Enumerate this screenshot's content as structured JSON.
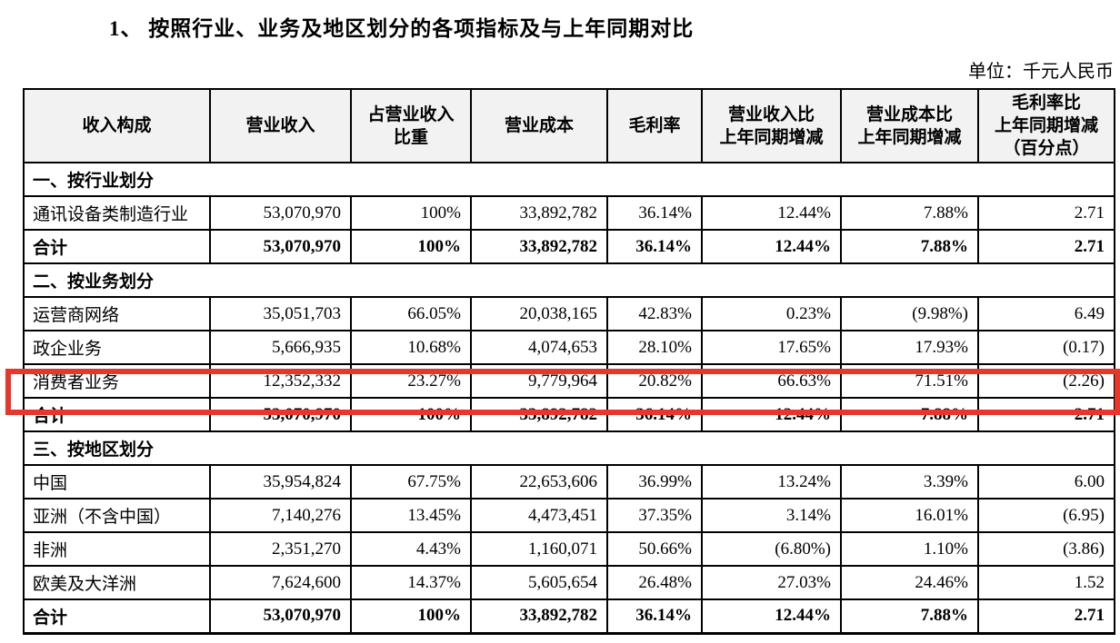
{
  "title": "1、 按照行业、业务及地区划分的各项指标及与上年同期对比",
  "unit_label": "单位：千元人民币",
  "table": {
    "columns": [
      "收入构成",
      "营业收入",
      "占营业收入\n比重",
      "营业成本",
      "毛利率",
      "营业收入比\n上年同期增减",
      "营业成本比\n上年同期增减",
      "毛利率比\n上年同期增减\n（百分点）"
    ],
    "rows": [
      {
        "type": "section",
        "label": "一、按行业划分"
      },
      {
        "type": "data",
        "cells": [
          "通讯设备类制造行业",
          "53,070,970",
          "100%",
          "33,892,782",
          "36.14%",
          "12.44%",
          "7.88%",
          "2.71"
        ]
      },
      {
        "type": "total",
        "cells": [
          "合计",
          "53,070,970",
          "100%",
          "33,892,782",
          "36.14%",
          "12.44%",
          "7.88%",
          "2.71"
        ]
      },
      {
        "type": "section",
        "label": "二、按业务划分"
      },
      {
        "type": "data",
        "cells": [
          "运营商网络",
          "35,051,703",
          "66.05%",
          "20,038,165",
          "42.83%",
          "0.23%",
          "(9.98%)",
          "6.49"
        ]
      },
      {
        "type": "data",
        "cells": [
          "政企业务",
          "5,666,935",
          "10.68%",
          "4,074,653",
          "28.10%",
          "17.65%",
          "17.93%",
          "(0.17)"
        ]
      },
      {
        "type": "data",
        "highlighted": true,
        "cells": [
          "消费者业务",
          "12,352,332",
          "23.27%",
          "9,779,964",
          "20.82%",
          "66.63%",
          "71.51%",
          "(2.26)"
        ]
      },
      {
        "type": "total",
        "cells": [
          "合计",
          "53,070,970",
          "100%",
          "33,892,782",
          "36.14%",
          "12.44%",
          "7.88%",
          "2.71"
        ]
      },
      {
        "type": "section",
        "label": "三、按地区划分"
      },
      {
        "type": "data",
        "cells": [
          "中国",
          "35,954,824",
          "67.75%",
          "22,653,606",
          "36.99%",
          "13.24%",
          "3.39%",
          "6.00"
        ]
      },
      {
        "type": "data",
        "cells": [
          "亚洲（不含中国）",
          "7,140,276",
          "13.45%",
          "4,473,451",
          "37.35%",
          "3.14%",
          "16.01%",
          "(6.95)"
        ]
      },
      {
        "type": "data",
        "cells": [
          "非洲",
          "2,351,270",
          "4.43%",
          "1,160,071",
          "50.66%",
          "(6.80%)",
          "1.10%",
          "(3.86)"
        ]
      },
      {
        "type": "data",
        "cells": [
          "欧美及大洋洲",
          "7,624,600",
          "14.37%",
          "5,605,654",
          "26.48%",
          "27.03%",
          "24.46%",
          "1.52"
        ]
      },
      {
        "type": "total",
        "cells": [
          "合计",
          "53,070,970",
          "100%",
          "33,892,782",
          "36.14%",
          "12.44%",
          "7.88%",
          "2.71"
        ]
      }
    ]
  },
  "highlight": {
    "row_label": "消费者业务",
    "color": "#e7372c"
  }
}
